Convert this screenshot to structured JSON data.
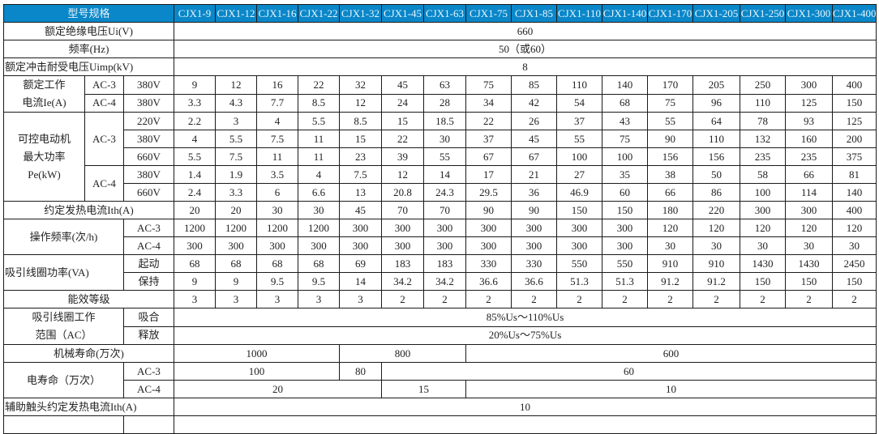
{
  "colors": {
    "header_bg": "#0a87c9",
    "header_text": "#e8f4fb",
    "border": "#1a1a1a"
  },
  "header": {
    "label": "型号规格",
    "models": [
      "CJX1-9",
      "CJX1-12",
      "CJX1-16",
      "CJX1-22",
      "CJX1-32",
      "CJX1-45",
      "CJX1-63",
      "CJX1-75",
      "CJX1-85",
      "CJX1-110",
      "CJX1-140",
      "CJX1-170",
      "CJX1-205",
      "CJX1-250",
      "CJX1-300",
      "CJX1-400"
    ]
  },
  "insulation_voltage": {
    "label": "额定绝缘电压Ui(V)",
    "value": "660"
  },
  "frequency": {
    "label": "频率(Hz)",
    "value": "50（或60）"
  },
  "impulse_voltage": {
    "label": "额定冲击耐受电压Uimp(kV)",
    "value": "8"
  },
  "rated_current": {
    "label": "额定工作\n电流Ie(A)",
    "rows": [
      {
        "category": "AC-3",
        "voltage": "380V",
        "values": [
          "9",
          "12",
          "16",
          "22",
          "32",
          "45",
          "63",
          "75",
          "85",
          "110",
          "140",
          "170",
          "205",
          "250",
          "300",
          "400"
        ]
      },
      {
        "category": "AC-4",
        "voltage": "380V",
        "values": [
          "3.3",
          "4.3",
          "7.7",
          "8.5",
          "12",
          "24",
          "28",
          "34",
          "42",
          "54",
          "68",
          "75",
          "96",
          "110",
          "125",
          "150"
        ]
      }
    ]
  },
  "motor_power": {
    "label": "可控电动机\n最大功率\nPe(kW)",
    "groups": [
      {
        "category": "AC-3",
        "rows": [
          {
            "voltage": "220V",
            "values": [
              "2.2",
              "3",
              "4",
              "5.5",
              "8.5",
              "15",
              "18.5",
              "22",
              "26",
              "37",
              "43",
              "55",
              "64",
              "78",
              "93",
              "125"
            ]
          },
          {
            "voltage": "380V",
            "values": [
              "4",
              "5.5",
              "7.5",
              "11",
              "15",
              "22",
              "30",
              "37",
              "45",
              "55",
              "75",
              "90",
              "110",
              "132",
              "160",
              "200"
            ]
          },
          {
            "voltage": "660V",
            "values": [
              "5.5",
              "7.5",
              "11",
              "11",
              "23",
              "39",
              "55",
              "67",
              "67",
              "100",
              "100",
              "156",
              "156",
              "235",
              "235",
              "375"
            ]
          }
        ]
      },
      {
        "category": "AC-4",
        "rows": [
          {
            "voltage": "380V",
            "values": [
              "1.4",
              "1.9",
              "3.5",
              "4",
              "7.5",
              "12",
              "14",
              "17",
              "21",
              "27",
              "35",
              "38",
              "50",
              "58",
              "66",
              "81"
            ]
          },
          {
            "voltage": "660V",
            "values": [
              "2.4",
              "3.3",
              "6",
              "6.6",
              "13",
              "20.8",
              "24.3",
              "29.5",
              "36",
              "46.9",
              "60",
              "66",
              "86",
              "100",
              "114",
              "140"
            ]
          }
        ]
      }
    ]
  },
  "thermal_current": {
    "label": "约定发热电流Ith(A)",
    "values": [
      "20",
      "20",
      "30",
      "30",
      "45",
      "70",
      "70",
      "90",
      "90",
      "150",
      "150",
      "180",
      "220",
      "300",
      "300",
      "400"
    ]
  },
  "operating_frequency": {
    "label": "操作频率(次/h)",
    "rows": [
      {
        "category": "AC-3",
        "values": [
          "1200",
          "1200",
          "1200",
          "1200",
          "300",
          "300",
          "300",
          "300",
          "300",
          "300",
          "300",
          "120",
          "120",
          "120",
          "120",
          "120"
        ]
      },
      {
        "category": "AC-4",
        "values": [
          "300",
          "300",
          "300",
          "300",
          "300",
          "300",
          "300",
          "300",
          "300",
          "300",
          "300",
          "30",
          "30",
          "30",
          "30",
          "30"
        ]
      }
    ]
  },
  "coil_power": {
    "label": "吸引线圈功率(VA)",
    "rows": [
      {
        "category": "起动",
        "values": [
          "68",
          "68",
          "68",
          "68",
          "69",
          "183",
          "183",
          "330",
          "330",
          "550",
          "550",
          "910",
          "910",
          "1430",
          "1430",
          "2450"
        ]
      },
      {
        "category": "保持",
        "values": [
          "9",
          "9",
          "9.5",
          "9.5",
          "14",
          "34.2",
          "34.2",
          "36.6",
          "36.6",
          "51.3",
          "51.3",
          "91.2",
          "91.2",
          "150",
          "150",
          "150"
        ]
      }
    ]
  },
  "efficiency_class": {
    "label": "能效等级",
    "values": [
      "3",
      "3",
      "3",
      "3",
      "3",
      "2",
      "2",
      "2",
      "2",
      "2",
      "2",
      "2",
      "2",
      "2",
      "2",
      "2"
    ]
  },
  "coil_range": {
    "label": "吸引线圈工作\n范围（AC）",
    "rows": [
      {
        "category": "吸合",
        "value": "85%Us～110%Us"
      },
      {
        "category": "释放",
        "value": "20%Us～75%Us"
      }
    ]
  },
  "mechanical_life": {
    "label": "机械寿命(万次)",
    "values": [
      "1000",
      "800",
      "600"
    ]
  },
  "electrical_life": {
    "label": "电寿命（万次）",
    "rows": [
      {
        "category": "AC-3",
        "values": [
          "100",
          "80",
          "60"
        ]
      },
      {
        "category": "AC-4",
        "values": [
          "20",
          "15",
          "10"
        ]
      }
    ]
  },
  "aux_thermal_current": {
    "label": "辅助触头约定发热电流Ith(A)",
    "value": "10"
  }
}
